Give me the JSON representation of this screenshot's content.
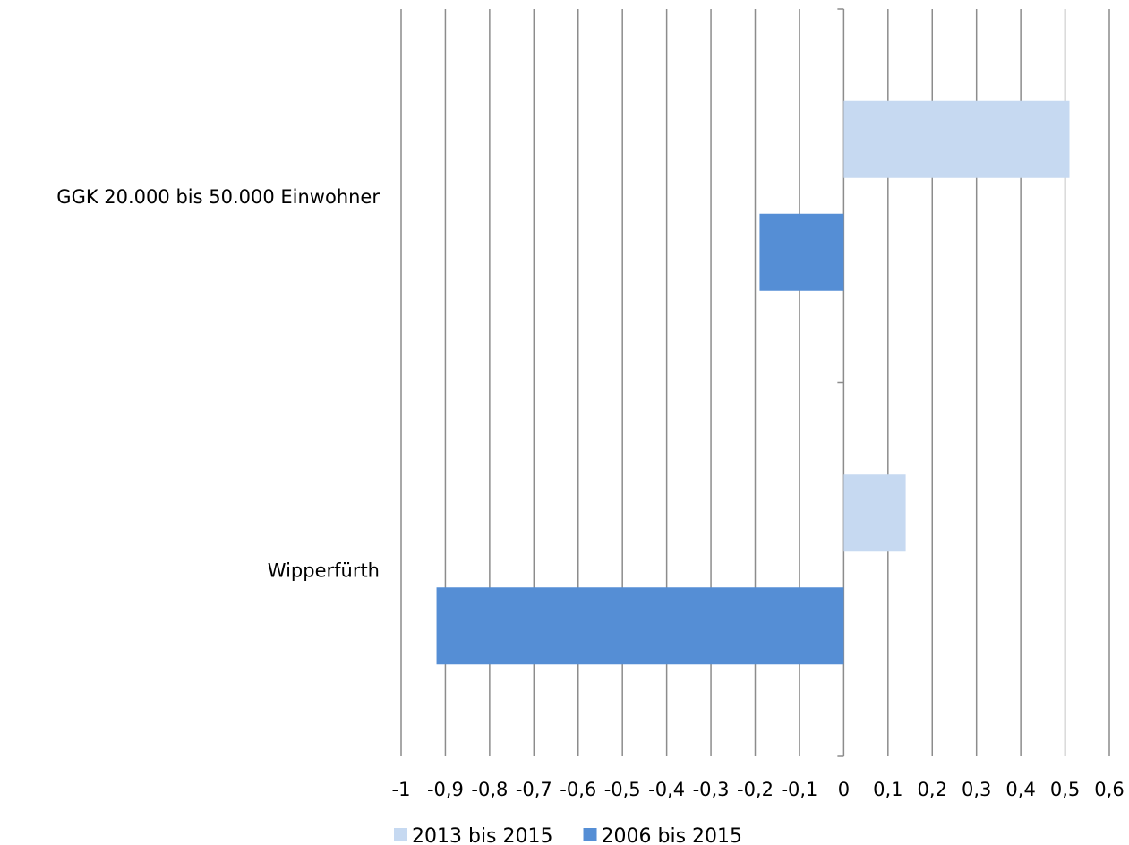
{
  "chart_data": {
    "type": "bar",
    "orientation": "horizontal",
    "categories": [
      "GGK 20.000 bis 50.000 Einwohner",
      "Wipperfürth"
    ],
    "series": [
      {
        "name": "2013 bis 2015",
        "values": [
          0.51,
          0.14
        ],
        "color": "#c6d9f1"
      },
      {
        "name": "2006 bis 2015",
        "values": [
          -0.19,
          -0.92
        ],
        "color": "#558ed5"
      }
    ],
    "x_ticks": [
      "-1",
      "-0,9",
      "-0,8",
      "-0,7",
      "-0,6",
      "-0,5",
      "-0,4",
      "-0,3",
      "-0,2",
      "-0,1",
      "0",
      "0,1",
      "0,2",
      "0,3",
      "0,4",
      "0,5",
      "0,6"
    ],
    "xlim": [
      -1,
      0.6
    ],
    "grid": true,
    "legend_position": "bottom",
    "title": "",
    "xlabel": "",
    "ylabel": ""
  }
}
